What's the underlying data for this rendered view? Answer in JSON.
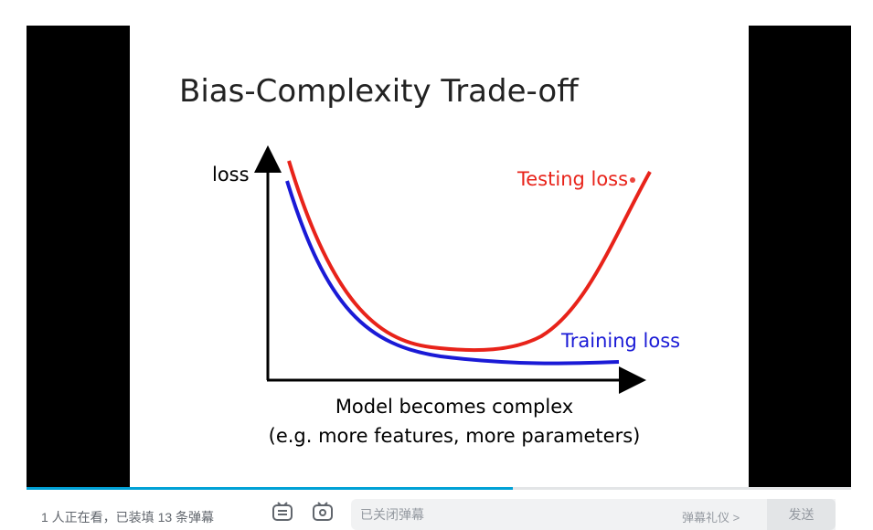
{
  "slide": {
    "title": "Bias-Complexity Trade-off",
    "y_label": "loss",
    "testing_label": "Testing loss",
    "training_label": "Training loss",
    "x_caption_line1": "Model becomes complex",
    "x_caption_line2": "(e.g. more features, more parameters)"
  },
  "colors": {
    "testing": "#e8231a",
    "training": "#1a1ad6",
    "progress": "#00a1d6"
  },
  "player": {
    "progress_fraction": 0.59
  },
  "bottom_bar": {
    "viewer_status": "1 人正在看，已装填 13 条弹幕",
    "danmaku_placeholder": "已关闭弹幕",
    "etiquette_link": "弹幕礼仪 >",
    "send_label": "发送"
  }
}
